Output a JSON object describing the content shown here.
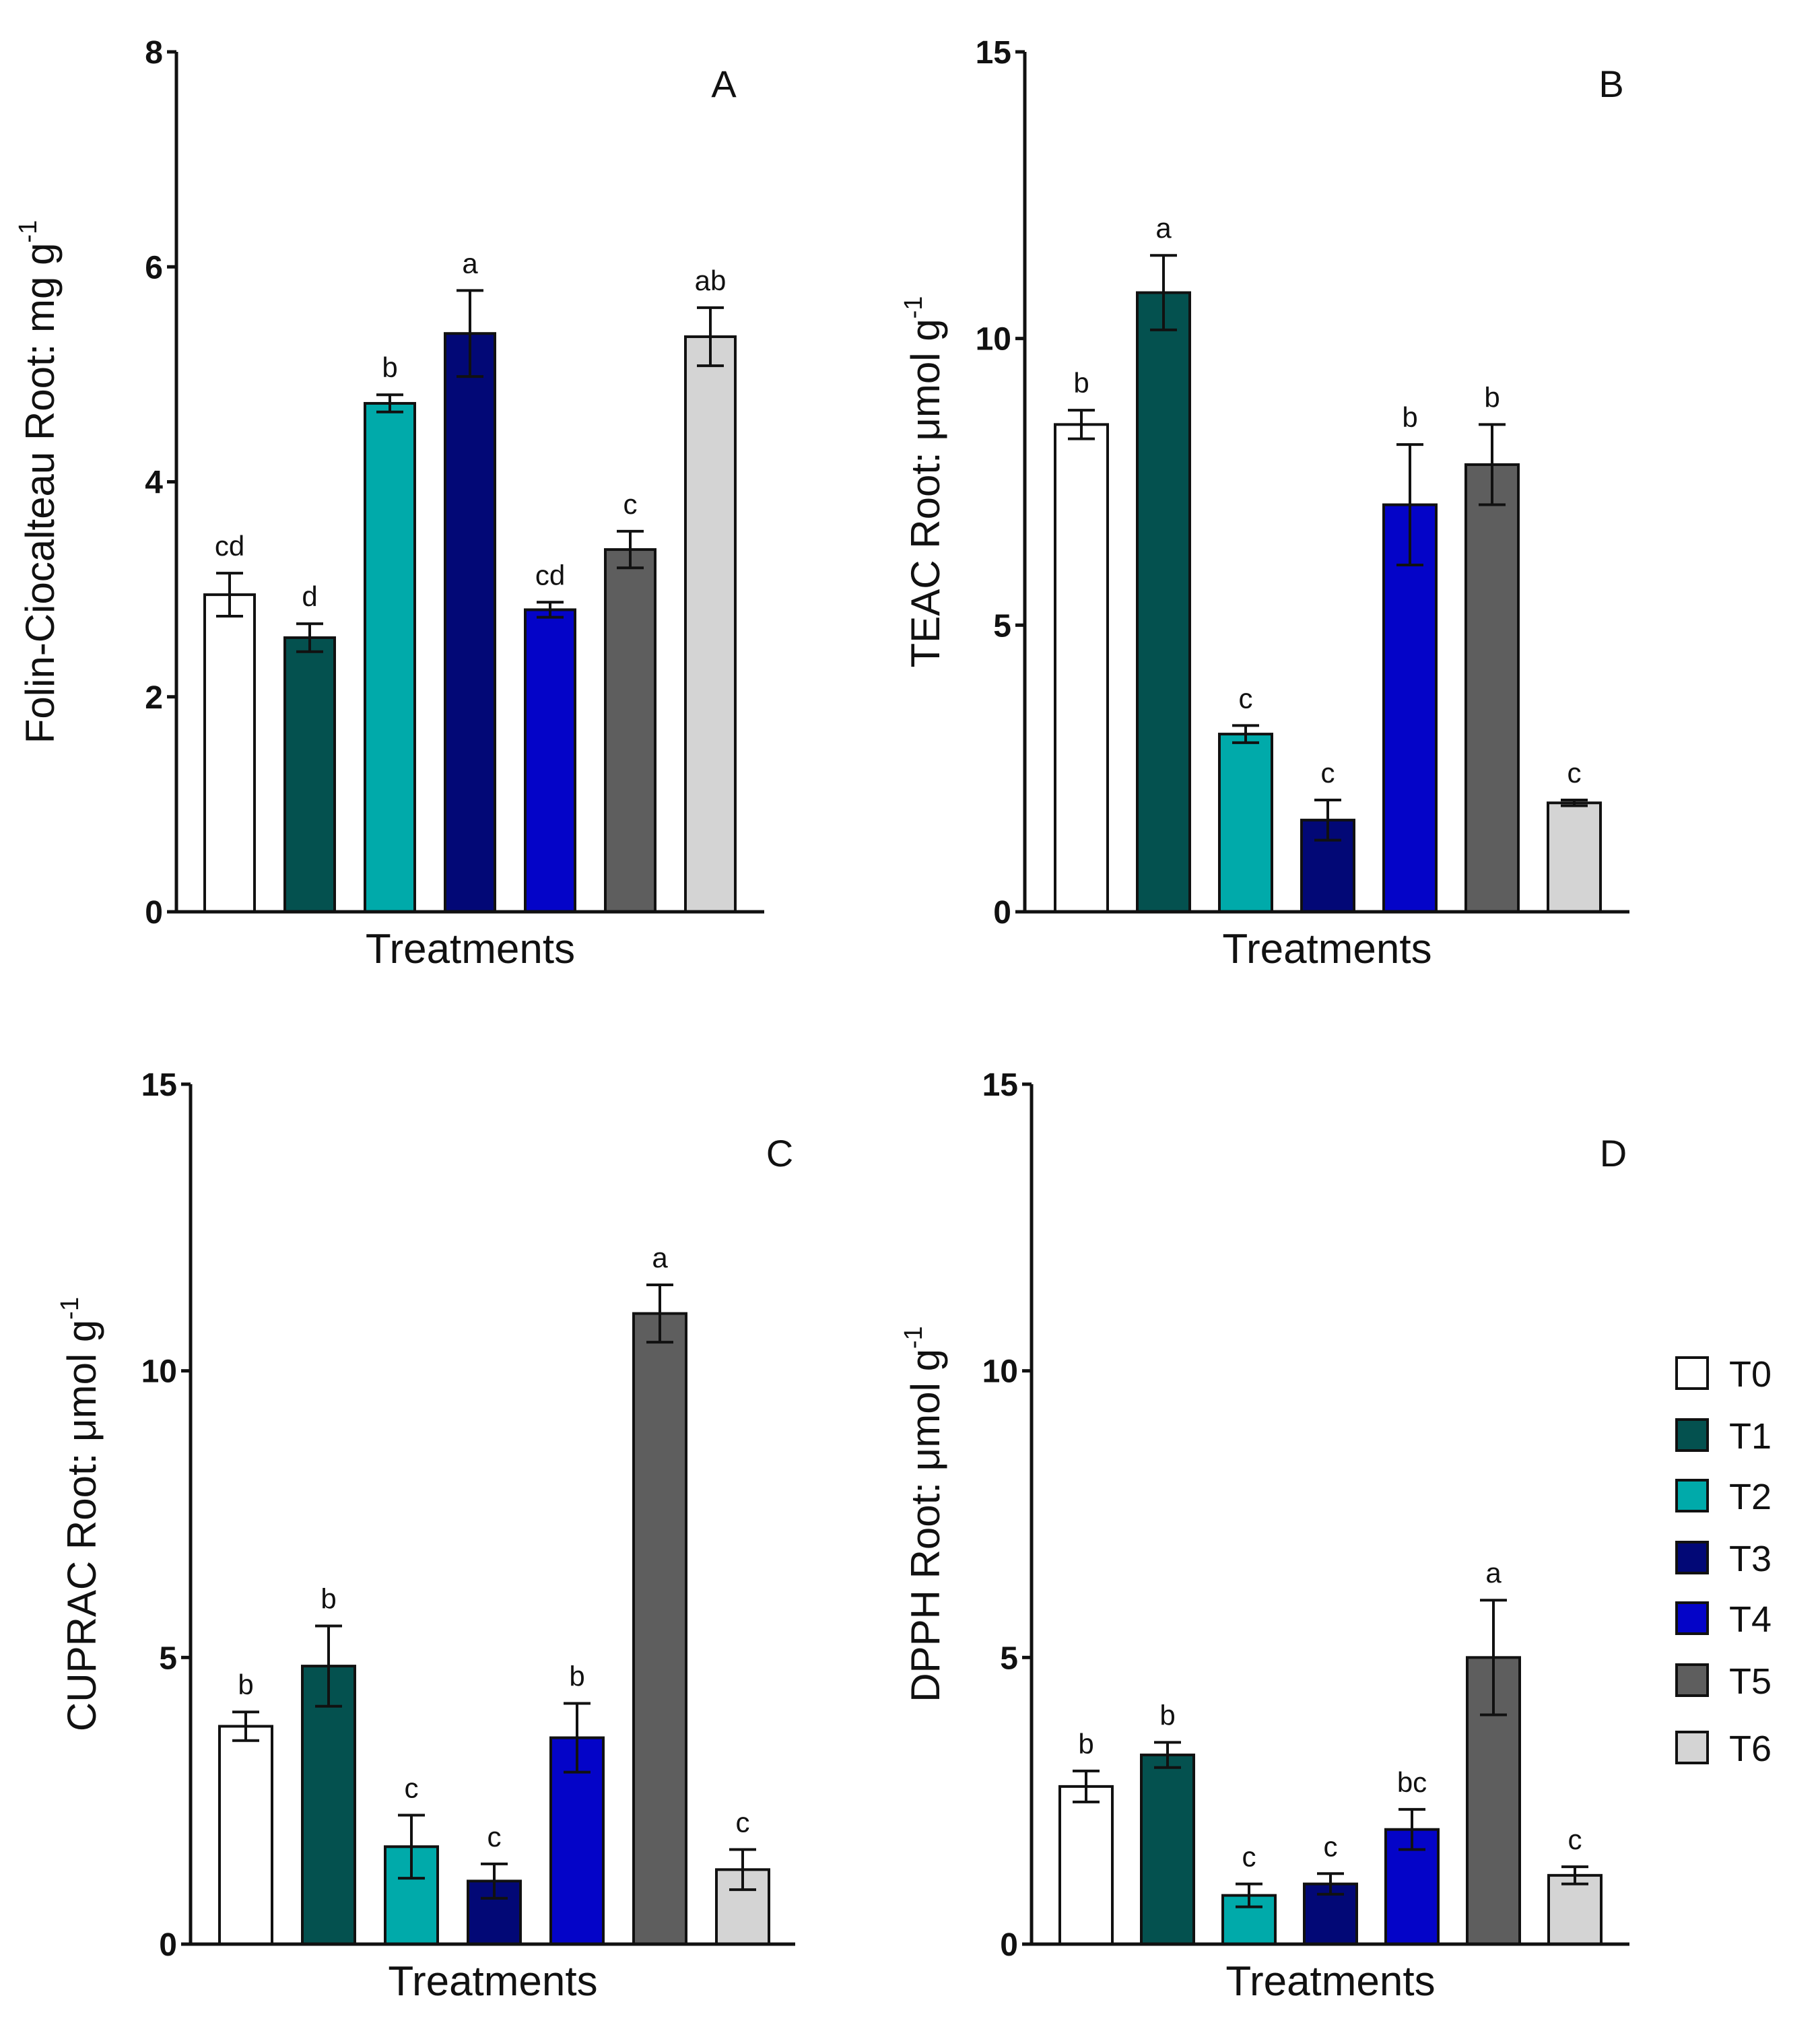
{
  "chart_data": [
    {
      "panel": "A",
      "type": "bar",
      "xlabel": "Treatments",
      "ylabel": "Folin-Ciocalteau Root: mg g",
      "ylabel_superscript": "-1",
      "ylim": [
        0,
        8
      ],
      "yticks": [
        0,
        2,
        4,
        6,
        8
      ],
      "categories": [
        "T0",
        "T1",
        "T2",
        "T3",
        "T4",
        "T5",
        "T6"
      ],
      "values": [
        2.95,
        2.55,
        4.73,
        5.38,
        2.81,
        3.37,
        5.35
      ],
      "errors": [
        0.2,
        0.13,
        0.08,
        0.4,
        0.07,
        0.17,
        0.27
      ],
      "letters": [
        "cd",
        "d",
        "b",
        "a",
        "cd",
        "c",
        "ab"
      ]
    },
    {
      "panel": "B",
      "type": "bar",
      "xlabel": "Treatments",
      "ylabel": "TEAC Root: μmol g",
      "ylabel_superscript": "-1",
      "ylim": [
        0,
        15
      ],
      "yticks": [
        0,
        5,
        10,
        15
      ],
      "categories": [
        "T0",
        "T1",
        "T2",
        "T3",
        "T4",
        "T5",
        "T6"
      ],
      "values": [
        8.5,
        10.8,
        3.1,
        1.6,
        7.1,
        7.8,
        1.9
      ],
      "errors": [
        0.25,
        0.65,
        0.15,
        0.35,
        1.05,
        0.7,
        0.05
      ],
      "letters": [
        "b",
        "a",
        "c",
        "c",
        "b",
        "b",
        "c"
      ]
    },
    {
      "panel": "C",
      "type": "bar",
      "xlabel": "Treatments",
      "ylabel": "CUPRAC Root: μmol g",
      "ylabel_superscript": "-1",
      "ylim": [
        0,
        15
      ],
      "yticks": [
        0,
        5,
        10,
        15
      ],
      "categories": [
        "T0",
        "T1",
        "T2",
        "T3",
        "T4",
        "T5",
        "T6"
      ],
      "values": [
        3.8,
        4.85,
        1.7,
        1.1,
        3.6,
        11.0,
        1.3
      ],
      "errors": [
        0.25,
        0.7,
        0.55,
        0.3,
        0.6,
        0.5,
        0.35
      ],
      "letters": [
        "b",
        "b",
        "c",
        "c",
        "b",
        "a",
        "c"
      ]
    },
    {
      "panel": "D",
      "type": "bar",
      "xlabel": "Treatments",
      "ylabel": "DPPH Root: μmol g",
      "ylabel_superscript": "-1",
      "ylim": [
        0,
        15
      ],
      "yticks": [
        0,
        5,
        10,
        15
      ],
      "categories": [
        "T0",
        "T1",
        "T2",
        "T3",
        "T4",
        "T5",
        "T6"
      ],
      "values": [
        2.75,
        3.3,
        0.85,
        1.05,
        2.0,
        5.0,
        1.2
      ],
      "errors": [
        0.27,
        0.22,
        0.2,
        0.18,
        0.35,
        1.0,
        0.15
      ],
      "letters": [
        "b",
        "b",
        "c",
        "c",
        "bc",
        "a",
        "c"
      ]
    }
  ],
  "legend": {
    "items": [
      {
        "label": "T0",
        "color": "#ffffff"
      },
      {
        "label": "T1",
        "color": "#04514f"
      },
      {
        "label": "T2",
        "color": "#00aaaa"
      },
      {
        "label": "T3",
        "color": "#020876"
      },
      {
        "label": "T4",
        "color": "#0404c8"
      },
      {
        "label": "T5",
        "color": "#5e5e5e"
      },
      {
        "label": "T6",
        "color": "#d4d4d4"
      }
    ]
  }
}
